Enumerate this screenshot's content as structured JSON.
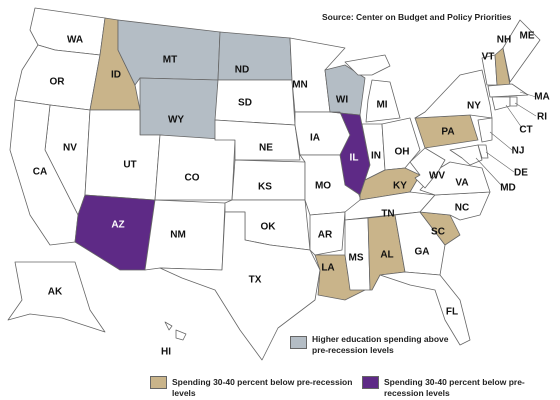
{
  "source": "Source: Center on Budget and Policy Priorities",
  "states": [
    {
      "label": "WA",
      "color": "#ffffff"
    },
    {
      "label": "OR",
      "color": "#ffffff"
    },
    {
      "label": "ID",
      "color": "#c9b48a"
    },
    {
      "label": "MT",
      "color": "#b4bdc5"
    },
    {
      "label": "WY",
      "color": "#b4bdc5"
    },
    {
      "label": "NV",
      "color": "#ffffff"
    },
    {
      "label": "CA",
      "color": "#ffffff"
    },
    {
      "label": "UT",
      "color": "#ffffff"
    },
    {
      "label": "AZ",
      "color": "#5e2a86"
    },
    {
      "label": "CO",
      "color": "#ffffff"
    },
    {
      "label": "NM",
      "color": "#ffffff"
    },
    {
      "label": "ND",
      "color": "#b4bdc5"
    },
    {
      "label": "SD",
      "color": "#ffffff"
    },
    {
      "label": "NE",
      "color": "#ffffff"
    },
    {
      "label": "KS",
      "color": "#ffffff"
    },
    {
      "label": "OK",
      "color": "#ffffff"
    },
    {
      "label": "TX",
      "color": "#ffffff"
    },
    {
      "label": "MN",
      "color": "#ffffff"
    },
    {
      "label": "IA",
      "color": "#ffffff"
    },
    {
      "label": "MO",
      "color": "#ffffff"
    },
    {
      "label": "AR",
      "color": "#ffffff"
    },
    {
      "label": "LA",
      "color": "#c9b48a"
    },
    {
      "label": "WI",
      "color": "#b4bdc5"
    },
    {
      "label": "IL",
      "color": "#5e2a86"
    },
    {
      "label": "MI",
      "color": "#ffffff"
    },
    {
      "label": "IN",
      "color": "#ffffff"
    },
    {
      "label": "OH",
      "color": "#ffffff"
    },
    {
      "label": "KY",
      "color": "#c9b48a"
    },
    {
      "label": "TN",
      "color": "#ffffff"
    },
    {
      "label": "MS",
      "color": "#ffffff"
    },
    {
      "label": "AL",
      "color": "#c9b48a"
    },
    {
      "label": "GA",
      "color": "#ffffff"
    },
    {
      "label": "FL",
      "color": "#ffffff"
    },
    {
      "label": "SC",
      "color": "#c9b48a"
    },
    {
      "label": "NC",
      "color": "#ffffff"
    },
    {
      "label": "VA",
      "color": "#ffffff"
    },
    {
      "label": "WV",
      "color": "#ffffff"
    },
    {
      "label": "PA",
      "color": "#c9b48a"
    },
    {
      "label": "NY",
      "color": "#ffffff"
    },
    {
      "label": "VT",
      "color": "#ffffff"
    },
    {
      "label": "NH",
      "color": "#c9b48a"
    },
    {
      "label": "ME",
      "color": "#ffffff"
    },
    {
      "label": "MA",
      "color": "#ffffff"
    },
    {
      "label": "CT",
      "color": "#ffffff"
    },
    {
      "label": "RI",
      "color": "#ffffff"
    },
    {
      "label": "NJ",
      "color": "#ffffff"
    },
    {
      "label": "DE",
      "color": "#ffffff"
    },
    {
      "label": "MD",
      "color": "#ffffff"
    },
    {
      "label": "AK",
      "color": "#ffffff"
    },
    {
      "label": "HI",
      "color": "#ffffff"
    }
  ],
  "legend": [
    {
      "label": "Higher education spending above pre-recession levels",
      "color": "#b4bdc5"
    },
    {
      "label": "Spending 30-40 percent below pre-recession levels",
      "color": "#c9b48a"
    },
    {
      "label": "Spending 30-40 percent below pre-recession levels",
      "color": "#5e2a86"
    }
  ]
}
